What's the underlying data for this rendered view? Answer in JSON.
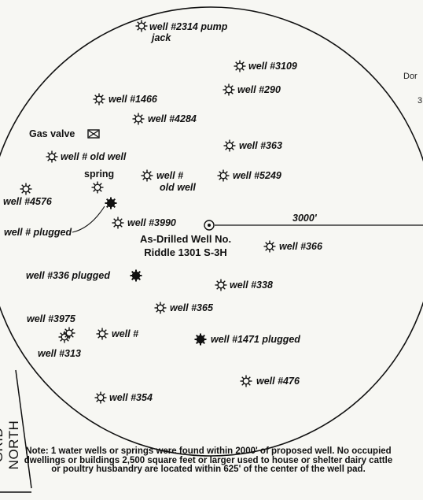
{
  "radius_label": "3000'",
  "center_well": {
    "line1": "As-Drilled Well No.",
    "line2": "Riddle 1301 S-3H"
  },
  "features": [
    {
      "id": "well-2314",
      "label_lines": [
        "well #2314 pump",
        "jack"
      ],
      "type": "well"
    },
    {
      "id": "well-3109",
      "label_lines": [
        "well #3109"
      ],
      "type": "well"
    },
    {
      "id": "well-290",
      "label_lines": [
        "well #290"
      ],
      "type": "well"
    },
    {
      "id": "well-1466",
      "label_lines": [
        "well #1466"
      ],
      "type": "well"
    },
    {
      "id": "well-4284",
      "label_lines": [
        "well #4284"
      ],
      "type": "well"
    },
    {
      "id": "gas-valve",
      "label_lines": [
        "Gas valve"
      ],
      "type": "valve"
    },
    {
      "id": "well-363",
      "label_lines": [
        "well #363"
      ],
      "type": "well"
    },
    {
      "id": "well-old-1",
      "label_lines": [
        "well # old well"
      ],
      "type": "well"
    },
    {
      "id": "spring",
      "label_lines": [
        "spring"
      ],
      "type": "spring"
    },
    {
      "id": "well-old-2",
      "label_lines": [
        "well #",
        "old well"
      ],
      "type": "well"
    },
    {
      "id": "well-5249",
      "label_lines": [
        "well #5249"
      ],
      "type": "well"
    },
    {
      "id": "well-4576",
      "label_lines": [
        "well #4576"
      ],
      "type": "well"
    },
    {
      "id": "well-plugged-unnumbered",
      "label_lines": [
        "well # plugged"
      ],
      "type": "plugged"
    },
    {
      "id": "well-3990",
      "label_lines": [
        "well #3990"
      ],
      "type": "well"
    },
    {
      "id": "well-366",
      "label_lines": [
        "well #366"
      ],
      "type": "well"
    },
    {
      "id": "well-336",
      "label_lines": [
        "well #336 plugged"
      ],
      "type": "plugged"
    },
    {
      "id": "well-338",
      "label_lines": [
        "well #338"
      ],
      "type": "well"
    },
    {
      "id": "well-365",
      "label_lines": [
        "well #365"
      ],
      "type": "well"
    },
    {
      "id": "well-3975",
      "label_lines": [
        "well #3975"
      ],
      "type": "well"
    },
    {
      "id": "well-313",
      "label_lines": [
        "well #313"
      ],
      "type": "well"
    },
    {
      "id": "well-hash",
      "label_lines": [
        "well #"
      ],
      "type": "well"
    },
    {
      "id": "well-1471",
      "label_lines": [
        "well #1471 plugged"
      ],
      "type": "plugged"
    },
    {
      "id": "well-476",
      "label_lines": [
        "well #476"
      ],
      "type": "well"
    },
    {
      "id": "well-354",
      "label_lines": [
        "well #354"
      ],
      "type": "well"
    }
  ],
  "grid_north_label": "GRID NORTH",
  "note": "Note: 1 water wells or springs were found within 2000' of proposed well. No occupied dwellings or buildings 2,500 square feet or larger used to house or shelter dairy cattle or poultry husbandry are located within 625' of the center of the well pad.",
  "edge_fragments": [
    "Dor",
    "3"
  ]
}
